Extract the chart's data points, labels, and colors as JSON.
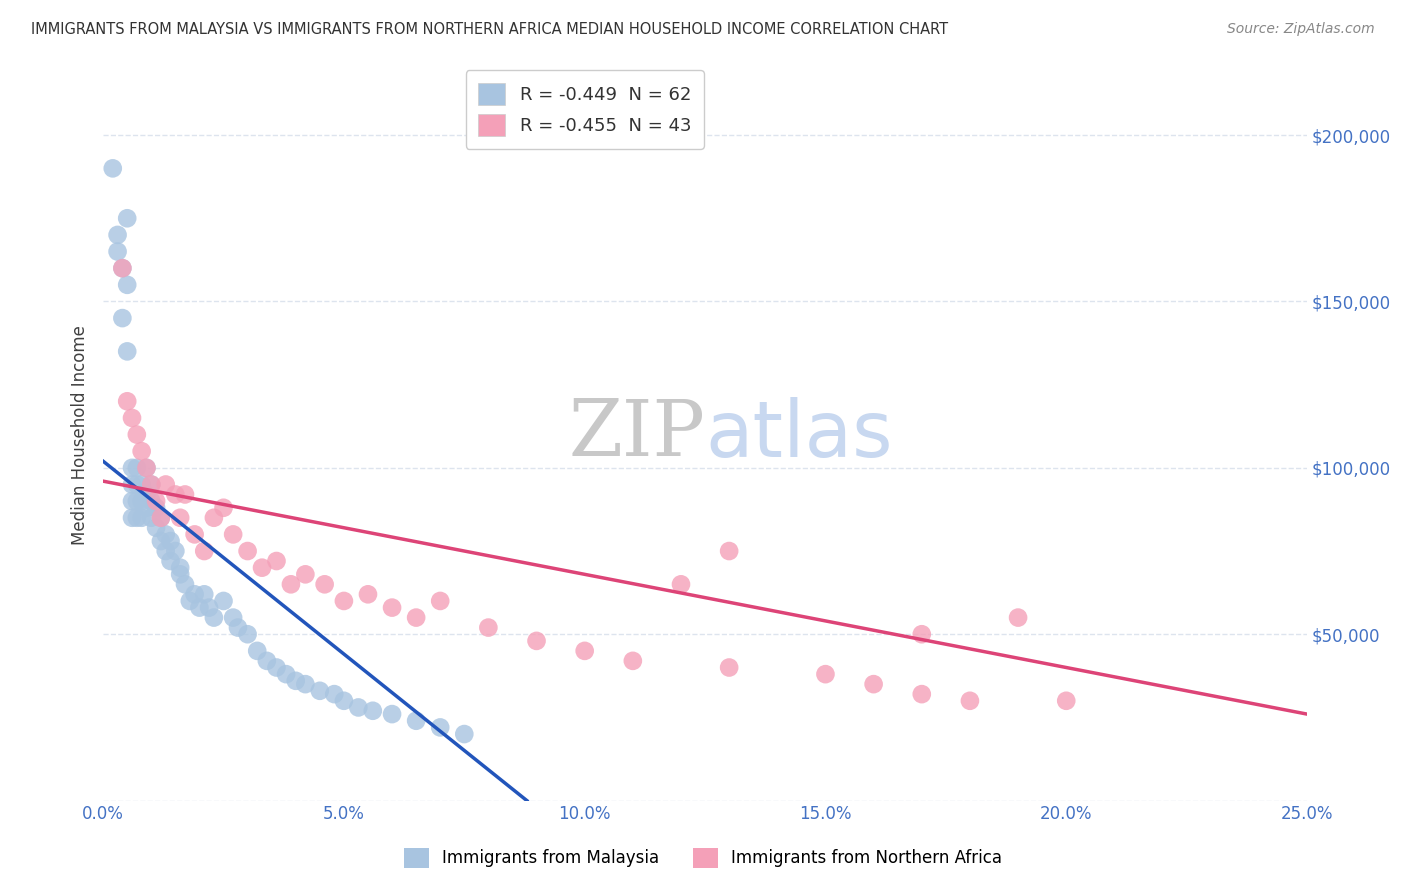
{
  "title": "IMMIGRANTS FROM MALAYSIA VS IMMIGRANTS FROM NORTHERN AFRICA MEDIAN HOUSEHOLD INCOME CORRELATION CHART",
  "source": "Source: ZipAtlas.com",
  "ylabel": "Median Household Income",
  "xlim": [
    0.0,
    0.25
  ],
  "ylim": [
    0,
    220000
  ],
  "yticks": [
    0,
    50000,
    100000,
    150000,
    200000
  ],
  "ytick_labels": [
    "",
    "$50,000",
    "$100,000",
    "$150,000",
    "$200,000"
  ],
  "xtick_labels": [
    "0.0%",
    "5.0%",
    "10.0%",
    "15.0%",
    "20.0%",
    "25.0%"
  ],
  "xticks": [
    0.0,
    0.05,
    0.1,
    0.15,
    0.2,
    0.25
  ],
  "legend1_label": "R = -0.449  N = 62",
  "legend2_label": "R = -0.455  N = 43",
  "blue_color": "#a8c4e0",
  "pink_color": "#f4a0b8",
  "blue_line_color": "#2255bb",
  "pink_line_color": "#dd4477",
  "title_color": "#333333",
  "source_color": "#888888",
  "axis_color": "#4472c4",
  "background_color": "#ffffff",
  "grid_color": "#dde4ee",
  "watermark_color": "#c8d8f0",
  "watermark_fontsize": 56,
  "malaysia_x": [
    0.002,
    0.003,
    0.003,
    0.004,
    0.004,
    0.005,
    0.005,
    0.005,
    0.006,
    0.006,
    0.006,
    0.006,
    0.007,
    0.007,
    0.007,
    0.007,
    0.008,
    0.008,
    0.008,
    0.009,
    0.009,
    0.009,
    0.01,
    0.01,
    0.01,
    0.011,
    0.011,
    0.012,
    0.012,
    0.013,
    0.013,
    0.014,
    0.014,
    0.015,
    0.016,
    0.016,
    0.017,
    0.018,
    0.019,
    0.02,
    0.021,
    0.022,
    0.023,
    0.025,
    0.027,
    0.028,
    0.03,
    0.032,
    0.034,
    0.036,
    0.038,
    0.04,
    0.042,
    0.045,
    0.048,
    0.05,
    0.053,
    0.056,
    0.06,
    0.065,
    0.07,
    0.075
  ],
  "malaysia_y": [
    190000,
    170000,
    165000,
    160000,
    145000,
    175000,
    155000,
    135000,
    100000,
    95000,
    90000,
    85000,
    100000,
    95000,
    90000,
    85000,
    95000,
    90000,
    85000,
    100000,
    92000,
    88000,
    95000,
    90000,
    85000,
    88000,
    82000,
    85000,
    78000,
    80000,
    75000,
    78000,
    72000,
    75000,
    70000,
    68000,
    65000,
    60000,
    62000,
    58000,
    62000,
    58000,
    55000,
    60000,
    55000,
    52000,
    50000,
    45000,
    42000,
    40000,
    38000,
    36000,
    35000,
    33000,
    32000,
    30000,
    28000,
    27000,
    26000,
    24000,
    22000,
    20000
  ],
  "n_africa_x": [
    0.004,
    0.005,
    0.006,
    0.007,
    0.008,
    0.009,
    0.01,
    0.011,
    0.012,
    0.013,
    0.015,
    0.016,
    0.017,
    0.019,
    0.021,
    0.023,
    0.025,
    0.027,
    0.03,
    0.033,
    0.036,
    0.039,
    0.042,
    0.046,
    0.05,
    0.055,
    0.06,
    0.065,
    0.07,
    0.08,
    0.09,
    0.1,
    0.11,
    0.12,
    0.13,
    0.15,
    0.16,
    0.17,
    0.18,
    0.19,
    0.2,
    0.17,
    0.13
  ],
  "n_africa_y": [
    160000,
    120000,
    115000,
    110000,
    105000,
    100000,
    95000,
    90000,
    85000,
    95000,
    92000,
    85000,
    92000,
    80000,
    75000,
    85000,
    88000,
    80000,
    75000,
    70000,
    72000,
    65000,
    68000,
    65000,
    60000,
    62000,
    58000,
    55000,
    60000,
    52000,
    48000,
    45000,
    42000,
    65000,
    40000,
    38000,
    35000,
    32000,
    30000,
    55000,
    30000,
    50000,
    75000
  ],
  "blue_line_x": [
    0.0,
    0.088
  ],
  "blue_line_y": [
    102000,
    0
  ],
  "pink_line_x": [
    0.0,
    0.25
  ],
  "pink_line_y": [
    96000,
    26000
  ]
}
